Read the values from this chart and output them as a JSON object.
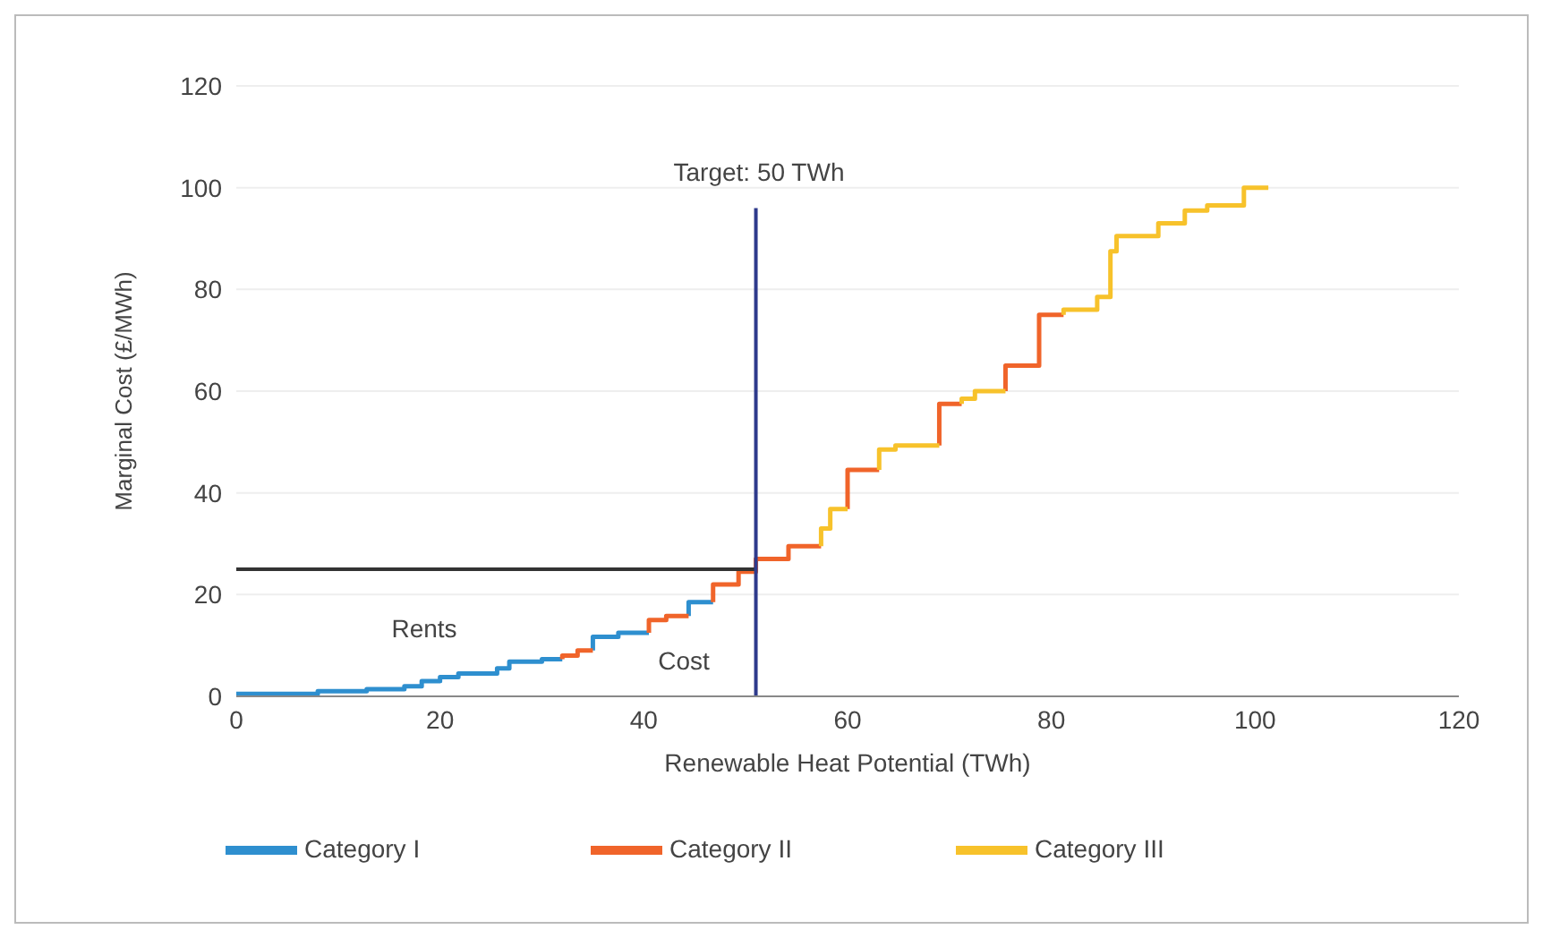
{
  "chart_data": {
    "type": "step",
    "xlabel": "Renewable Heat Potential (TWh)",
    "ylabel": "Marginal Cost (£/MWh)",
    "xlim": [
      0,
      120
    ],
    "xticks": [
      0,
      20,
      40,
      60,
      80,
      100,
      120
    ],
    "ylim": [
      0,
      120
    ],
    "yticks": [
      0,
      20,
      40,
      60,
      80,
      100,
      120
    ],
    "grid": "y",
    "legend": "bottom",
    "marker": "none",
    "series": [
      {
        "name": "Category I",
        "color": "#2e8fcf",
        "x": [
          0,
          8,
          12.8,
          16.5,
          18.2,
          20,
          21.8,
          25.6,
          26.8,
          30,
          32,
          33,
          35,
          35,
          37.5,
          40.5,
          42,
          44.4,
          44.4,
          46.8
        ],
        "values": [
          0.5,
          1,
          1.4,
          2,
          3,
          3.8,
          4.5,
          5.5,
          6.8,
          7.3,
          7.3,
          null,
          9,
          11.7,
          12.5,
          12.5,
          null,
          15.8,
          18.5,
          18.5
        ]
      },
      {
        "name": "Category II",
        "color": "#f0642a",
        "x": [
          32,
          32,
          33.5,
          35,
          36,
          40.5,
          40.5,
          42.2,
          44.4,
          45.5,
          46.8,
          46.8,
          49.3,
          51,
          54.2,
          57.4,
          58.5,
          60,
          60,
          63.1,
          65,
          69,
          69,
          71.2,
          73,
          75.5,
          75.5,
          78.8,
          81.2
        ],
        "values": [
          7.3,
          8,
          9,
          9,
          null,
          12.5,
          15,
          15.8,
          15.8,
          null,
          18.5,
          22,
          24.5,
          27,
          29.5,
          29.5,
          null,
          36.8,
          44.5,
          44.5,
          null,
          49.3,
          57.5,
          57.5,
          null,
          60,
          65,
          75,
          75
        ]
      },
      {
        "name": "Category III",
        "color": "#f7c22b",
        "x": [
          57.4,
          57.4,
          58.3,
          60,
          61,
          63.1,
          63.1,
          64.7,
          69,
          70,
          71.2,
          71.2,
          72.5,
          75.5,
          77,
          81.2,
          81.2,
          84.5,
          85.8,
          86.4,
          90.5,
          93.1,
          95.3,
          98.9,
          101.3
        ],
        "values": [
          29.5,
          33,
          36.8,
          36.8,
          null,
          44.5,
          48.5,
          49.3,
          49.3,
          null,
          57.5,
          58.5,
          60,
          60,
          null,
          75,
          76,
          78.5,
          87.5,
          90.5,
          93,
          95.5,
          96.5,
          100,
          100
        ]
      },
      {
        "type": "line",
        "color": "#333333",
        "x": [
          0,
          51
        ],
        "values": [
          25,
          25
        ]
      },
      {
        "type": "line",
        "color": "#2e3a8c",
        "x": [
          51,
          51
        ],
        "values": [
          0,
          96
        ]
      }
    ],
    "annotations": [
      "Target: 50 TWh",
      "Rents",
      "Cost"
    ]
  }
}
